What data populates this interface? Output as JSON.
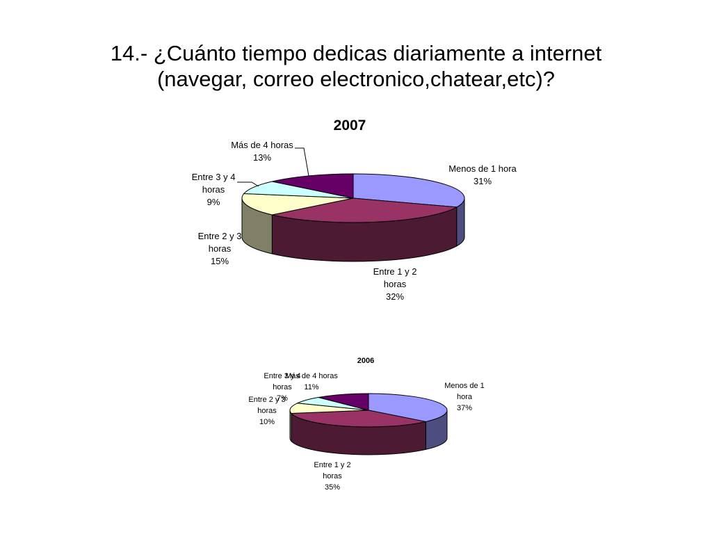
{
  "slide": {
    "title_line1": "14.- ¿Cuánto tiempo dedicas diariamente a internet",
    "title_line2": "(navegar, correo electronico,chatear,etc)?"
  },
  "chart_data": [
    {
      "type": "pie",
      "style": "3d",
      "title": "2007",
      "slices": [
        {
          "label": "Menos de 1 hora",
          "label_lines": [
            "Menos de 1 hora"
          ],
          "value": 31,
          "pct_text": "31%",
          "color": "#9999ff"
        },
        {
          "label": "Entre 1 y 2 horas",
          "label_lines": [
            "Entre 1 y 2",
            "horas"
          ],
          "value": 32,
          "pct_text": "32%",
          "color": "#993366"
        },
        {
          "label": "Entre 2 y 3 horas",
          "label_lines": [
            "Entre 2 y 3",
            "horas"
          ],
          "value": 15,
          "pct_text": "15%",
          "color": "#ffffcc"
        },
        {
          "label": "Entre 3 y 4 horas",
          "label_lines": [
            "Entre 3 y 4",
            "horas"
          ],
          "value": 9,
          "pct_text": "9%",
          "color": "#ccffff"
        },
        {
          "label": "Más de 4 horas",
          "label_lines": [
            "Más de 4 horas"
          ],
          "value": 13,
          "pct_text": "13%",
          "color": "#660066"
        }
      ]
    },
    {
      "type": "pie",
      "style": "3d",
      "title": "2006",
      "slices": [
        {
          "label": "Menos de 1 hora",
          "label_lines": [
            "Menos de 1",
            "hora"
          ],
          "value": 37,
          "pct_text": "37%",
          "color": "#9999ff"
        },
        {
          "label": "Entre 1 y 2 horas",
          "label_lines": [
            "Entre 1 y 2",
            "horas"
          ],
          "value": 35,
          "pct_text": "35%",
          "color": "#993366"
        },
        {
          "label": "Entre 2 y 3 horas",
          "label_lines": [
            "Entre 2 y 3",
            "horas"
          ],
          "value": 10,
          "pct_text": "10%",
          "color": "#ffffcc"
        },
        {
          "label": "Entre 3 y 4 horas",
          "label_lines": [
            "Entre 3 y 4",
            "horas"
          ],
          "value": 7,
          "pct_text": "7%",
          "color": "#ccffff"
        },
        {
          "label": "Más de 4 horas",
          "label_lines": [
            "Más de 4 horas"
          ],
          "value": 11,
          "pct_text": "11%",
          "color": "#660066"
        }
      ]
    }
  ]
}
